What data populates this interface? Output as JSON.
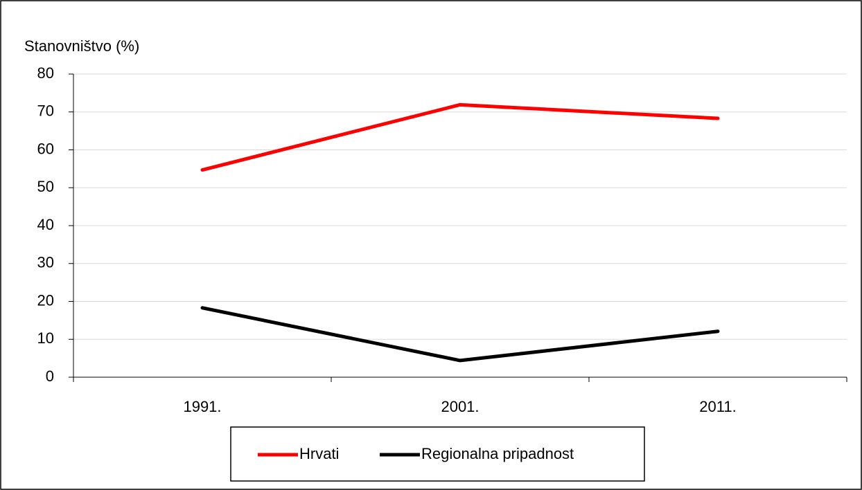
{
  "chart_data": {
    "type": "line",
    "y_label": "Stanovništvo (%)",
    "categories": [
      "1991.",
      "2001.",
      "2011."
    ],
    "series": [
      {
        "name": "Hrvati",
        "color": "#ff0000",
        "values": [
          54.7,
          71.9,
          68.3
        ]
      },
      {
        "name": "Regionalna pripadnost",
        "color": "#000000",
        "values": [
          18.3,
          4.4,
          12.1
        ]
      }
    ],
    "ylim": [
      0,
      80
    ],
    "yticks": [
      0,
      10,
      20,
      30,
      40,
      50,
      60,
      70,
      80
    ],
    "grid": true,
    "legend": "bottom"
  }
}
